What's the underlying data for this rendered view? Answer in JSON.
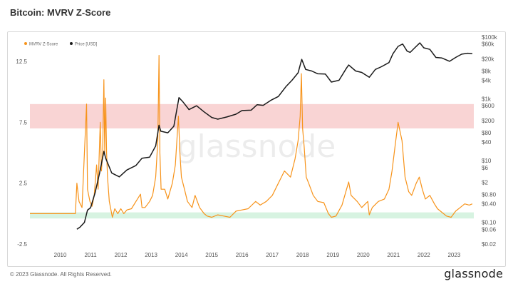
{
  "page": {
    "title": "Bitcoin: MVRV Z-Score",
    "footer": "© 2023 Glassnode. All Rights Reserved.",
    "brand": "glassnode",
    "watermark": "glassnode"
  },
  "colors": {
    "z_score": "#f7931a",
    "price": "#1a1a1a",
    "red_band": "#f9d4d4",
    "green_band": "#d7f3e1"
  },
  "chart_data": {
    "type": "line",
    "title": "Bitcoin: MVRV Z-Score",
    "x_ticks": [
      "2010",
      "2011",
      "2012",
      "2013",
      "2014",
      "2015",
      "2016",
      "2017",
      "2018",
      "2019",
      "2020",
      "2021",
      "2022",
      "2023"
    ],
    "xlim": [
      2009.0,
      2023.65
    ],
    "left_axis": {
      "ticks": [
        "12.5",
        "7.5",
        "2.5",
        "-2.5"
      ],
      "tick_values": [
        12.5,
        7.5,
        2.5,
        -2.5
      ],
      "ylim": [
        -2.5,
        14.5
      ]
    },
    "right_axis": {
      "scale": "log",
      "ticks": [
        "$100k",
        "$60k",
        "$20k",
        "$8k",
        "$4k",
        "$1k",
        "$600",
        "$200",
        "$80",
        "$40",
        "$10",
        "$6",
        "$2",
        "$0.80",
        "$0.40",
        "$0.10",
        "$0.06",
        "$0.02"
      ],
      "tick_values": [
        100000,
        60000,
        20000,
        8000,
        4000,
        1000,
        600,
        200,
        80,
        40,
        10,
        6,
        2,
        0.8,
        0.4,
        0.1,
        0.06,
        0.02
      ],
      "ylim": [
        0.02,
        100000
      ]
    },
    "bands": [
      {
        "name": "red",
        "from": 7.0,
        "to": 9.0
      },
      {
        "name": "green",
        "from": -0.4,
        "to": 0.1
      }
    ],
    "legend_position": "top-left",
    "series": [
      {
        "name": "MVRV Z-Score",
        "axis": "left",
        "points": [
          [
            2009.0,
            0.0
          ],
          [
            2010.5,
            0.0
          ],
          [
            2010.55,
            2.5
          ],
          [
            2010.62,
            1.0
          ],
          [
            2010.72,
            0.5
          ],
          [
            2010.87,
            9.0
          ],
          [
            2010.9,
            2.0
          ],
          [
            2010.98,
            1.0
          ],
          [
            2011.05,
            0.6
          ],
          [
            2011.12,
            1.5
          ],
          [
            2011.2,
            4.0
          ],
          [
            2011.25,
            2.0
          ],
          [
            2011.32,
            7.5
          ],
          [
            2011.36,
            3.5
          ],
          [
            2011.4,
            5.0
          ],
          [
            2011.44,
            11.0
          ],
          [
            2011.47,
            5.0
          ],
          [
            2011.5,
            9.5
          ],
          [
            2011.53,
            5.0
          ],
          [
            2011.56,
            3.0
          ],
          [
            2011.62,
            1.0
          ],
          [
            2011.72,
            -0.3
          ],
          [
            2011.8,
            0.4
          ],
          [
            2011.9,
            0.0
          ],
          [
            2012.0,
            0.4
          ],
          [
            2012.1,
            0.0
          ],
          [
            2012.2,
            0.3
          ],
          [
            2012.35,
            0.4
          ],
          [
            2012.5,
            1.0
          ],
          [
            2012.65,
            1.6
          ],
          [
            2012.7,
            0.5
          ],
          [
            2012.8,
            0.5
          ],
          [
            2012.95,
            1.0
          ],
          [
            2013.05,
            1.5
          ],
          [
            2013.15,
            3.0
          ],
          [
            2013.22,
            6.0
          ],
          [
            2013.26,
            13.0
          ],
          [
            2013.29,
            5.0
          ],
          [
            2013.33,
            2.0
          ],
          [
            2013.45,
            2.0
          ],
          [
            2013.55,
            1.2
          ],
          [
            2013.7,
            2.5
          ],
          [
            2013.8,
            4.0
          ],
          [
            2013.9,
            8.0
          ],
          [
            2013.95,
            5.0
          ],
          [
            2014.0,
            3.0
          ],
          [
            2014.1,
            2.0
          ],
          [
            2014.2,
            1.0
          ],
          [
            2014.35,
            0.5
          ],
          [
            2014.45,
            1.5
          ],
          [
            2014.6,
            0.5
          ],
          [
            2014.75,
            0.0
          ],
          [
            2014.85,
            -0.2
          ],
          [
            2015.0,
            -0.3
          ],
          [
            2015.2,
            -0.1
          ],
          [
            2015.4,
            -0.2
          ],
          [
            2015.6,
            -0.3
          ],
          [
            2015.8,
            0.2
          ],
          [
            2016.0,
            0.3
          ],
          [
            2016.2,
            0.4
          ],
          [
            2016.45,
            1.0
          ],
          [
            2016.6,
            0.7
          ],
          [
            2016.8,
            1.0
          ],
          [
            2017.0,
            1.5
          ],
          [
            2017.2,
            2.5
          ],
          [
            2017.4,
            3.5
          ],
          [
            2017.6,
            3.0
          ],
          [
            2017.75,
            4.5
          ],
          [
            2017.85,
            6.0
          ],
          [
            2017.92,
            8.0
          ],
          [
            2017.96,
            11.5
          ],
          [
            2018.0,
            7.0
          ],
          [
            2018.05,
            5.5
          ],
          [
            2018.12,
            3.0
          ],
          [
            2018.2,
            2.5
          ],
          [
            2018.35,
            1.5
          ],
          [
            2018.5,
            1.0
          ],
          [
            2018.7,
            0.9
          ],
          [
            2018.85,
            0.0
          ],
          [
            2018.95,
            -0.3
          ],
          [
            2019.1,
            -0.2
          ],
          [
            2019.3,
            0.7
          ],
          [
            2019.45,
            2.0
          ],
          [
            2019.52,
            2.6
          ],
          [
            2019.6,
            1.5
          ],
          [
            2019.8,
            1.0
          ],
          [
            2019.95,
            0.5
          ],
          [
            2020.15,
            1.0
          ],
          [
            2020.2,
            -0.1
          ],
          [
            2020.3,
            0.5
          ],
          [
            2020.5,
            1.0
          ],
          [
            2020.7,
            1.2
          ],
          [
            2020.85,
            2.0
          ],
          [
            2020.95,
            3.5
          ],
          [
            2021.05,
            5.5
          ],
          [
            2021.15,
            7.5
          ],
          [
            2021.28,
            6.0
          ],
          [
            2021.38,
            3.0
          ],
          [
            2021.5,
            1.8
          ],
          [
            2021.6,
            1.5
          ],
          [
            2021.75,
            2.5
          ],
          [
            2021.85,
            3.0
          ],
          [
            2021.95,
            2.0
          ],
          [
            2022.05,
            1.2
          ],
          [
            2022.2,
            1.5
          ],
          [
            2022.35,
            0.8
          ],
          [
            2022.45,
            0.4
          ],
          [
            2022.6,
            0.1
          ],
          [
            2022.75,
            -0.2
          ],
          [
            2022.9,
            -0.3
          ],
          [
            2023.05,
            0.2
          ],
          [
            2023.2,
            0.5
          ],
          [
            2023.35,
            0.8
          ],
          [
            2023.5,
            0.7
          ],
          [
            2023.6,
            0.8
          ]
        ]
      },
      {
        "name": "Price [USD]",
        "axis": "right",
        "points": [
          [
            2010.55,
            0.06
          ],
          [
            2010.65,
            0.07
          ],
          [
            2010.8,
            0.1
          ],
          [
            2010.9,
            0.25
          ],
          [
            2011.0,
            0.3
          ],
          [
            2011.15,
            0.9
          ],
          [
            2011.3,
            4.0
          ],
          [
            2011.44,
            20.0
          ],
          [
            2011.5,
            12.0
          ],
          [
            2011.7,
            4.0
          ],
          [
            2011.95,
            3.0
          ],
          [
            2012.2,
            5.0
          ],
          [
            2012.5,
            7.0
          ],
          [
            2012.7,
            12.0
          ],
          [
            2012.95,
            13.0
          ],
          [
            2013.15,
            30.0
          ],
          [
            2013.26,
            140.0
          ],
          [
            2013.32,
            90.0
          ],
          [
            2013.55,
            80.0
          ],
          [
            2013.75,
            130.0
          ],
          [
            2013.92,
            1100.0
          ],
          [
            2014.05,
            800.0
          ],
          [
            2014.25,
            450.0
          ],
          [
            2014.5,
            600.0
          ],
          [
            2014.75,
            380.0
          ],
          [
            2015.0,
            250.0
          ],
          [
            2015.2,
            220.0
          ],
          [
            2015.5,
            260.0
          ],
          [
            2015.8,
            320.0
          ],
          [
            2016.0,
            420.0
          ],
          [
            2016.3,
            430.0
          ],
          [
            2016.5,
            650.0
          ],
          [
            2016.7,
            620.0
          ],
          [
            2016.95,
            900.0
          ],
          [
            2017.2,
            1200.0
          ],
          [
            2017.45,
            2500.0
          ],
          [
            2017.65,
            4000.0
          ],
          [
            2017.85,
            7000.0
          ],
          [
            2017.97,
            19000.0
          ],
          [
            2018.1,
            9000.0
          ],
          [
            2018.3,
            8000.0
          ],
          [
            2018.5,
            6500.0
          ],
          [
            2018.75,
            6400.0
          ],
          [
            2018.95,
            3500.0
          ],
          [
            2019.2,
            4000.0
          ],
          [
            2019.45,
            10000.0
          ],
          [
            2019.52,
            12500.0
          ],
          [
            2019.75,
            8000.0
          ],
          [
            2019.95,
            7200.0
          ],
          [
            2020.2,
            5000.0
          ],
          [
            2020.4,
            9000.0
          ],
          [
            2020.6,
            11000.0
          ],
          [
            2020.85,
            15000.0
          ],
          [
            2020.98,
            29000.0
          ],
          [
            2021.15,
            50000.0
          ],
          [
            2021.3,
            60000.0
          ],
          [
            2021.45,
            35000.0
          ],
          [
            2021.55,
            32000.0
          ],
          [
            2021.7,
            45000.0
          ],
          [
            2021.87,
            65000.0
          ],
          [
            2022.0,
            45000.0
          ],
          [
            2022.2,
            40000.0
          ],
          [
            2022.4,
            22000.0
          ],
          [
            2022.6,
            21000.0
          ],
          [
            2022.85,
            16500.0
          ],
          [
            2023.05,
            22000.0
          ],
          [
            2023.25,
            28000.0
          ],
          [
            2023.45,
            30000.0
          ],
          [
            2023.6,
            29000.0
          ]
        ]
      }
    ]
  }
}
